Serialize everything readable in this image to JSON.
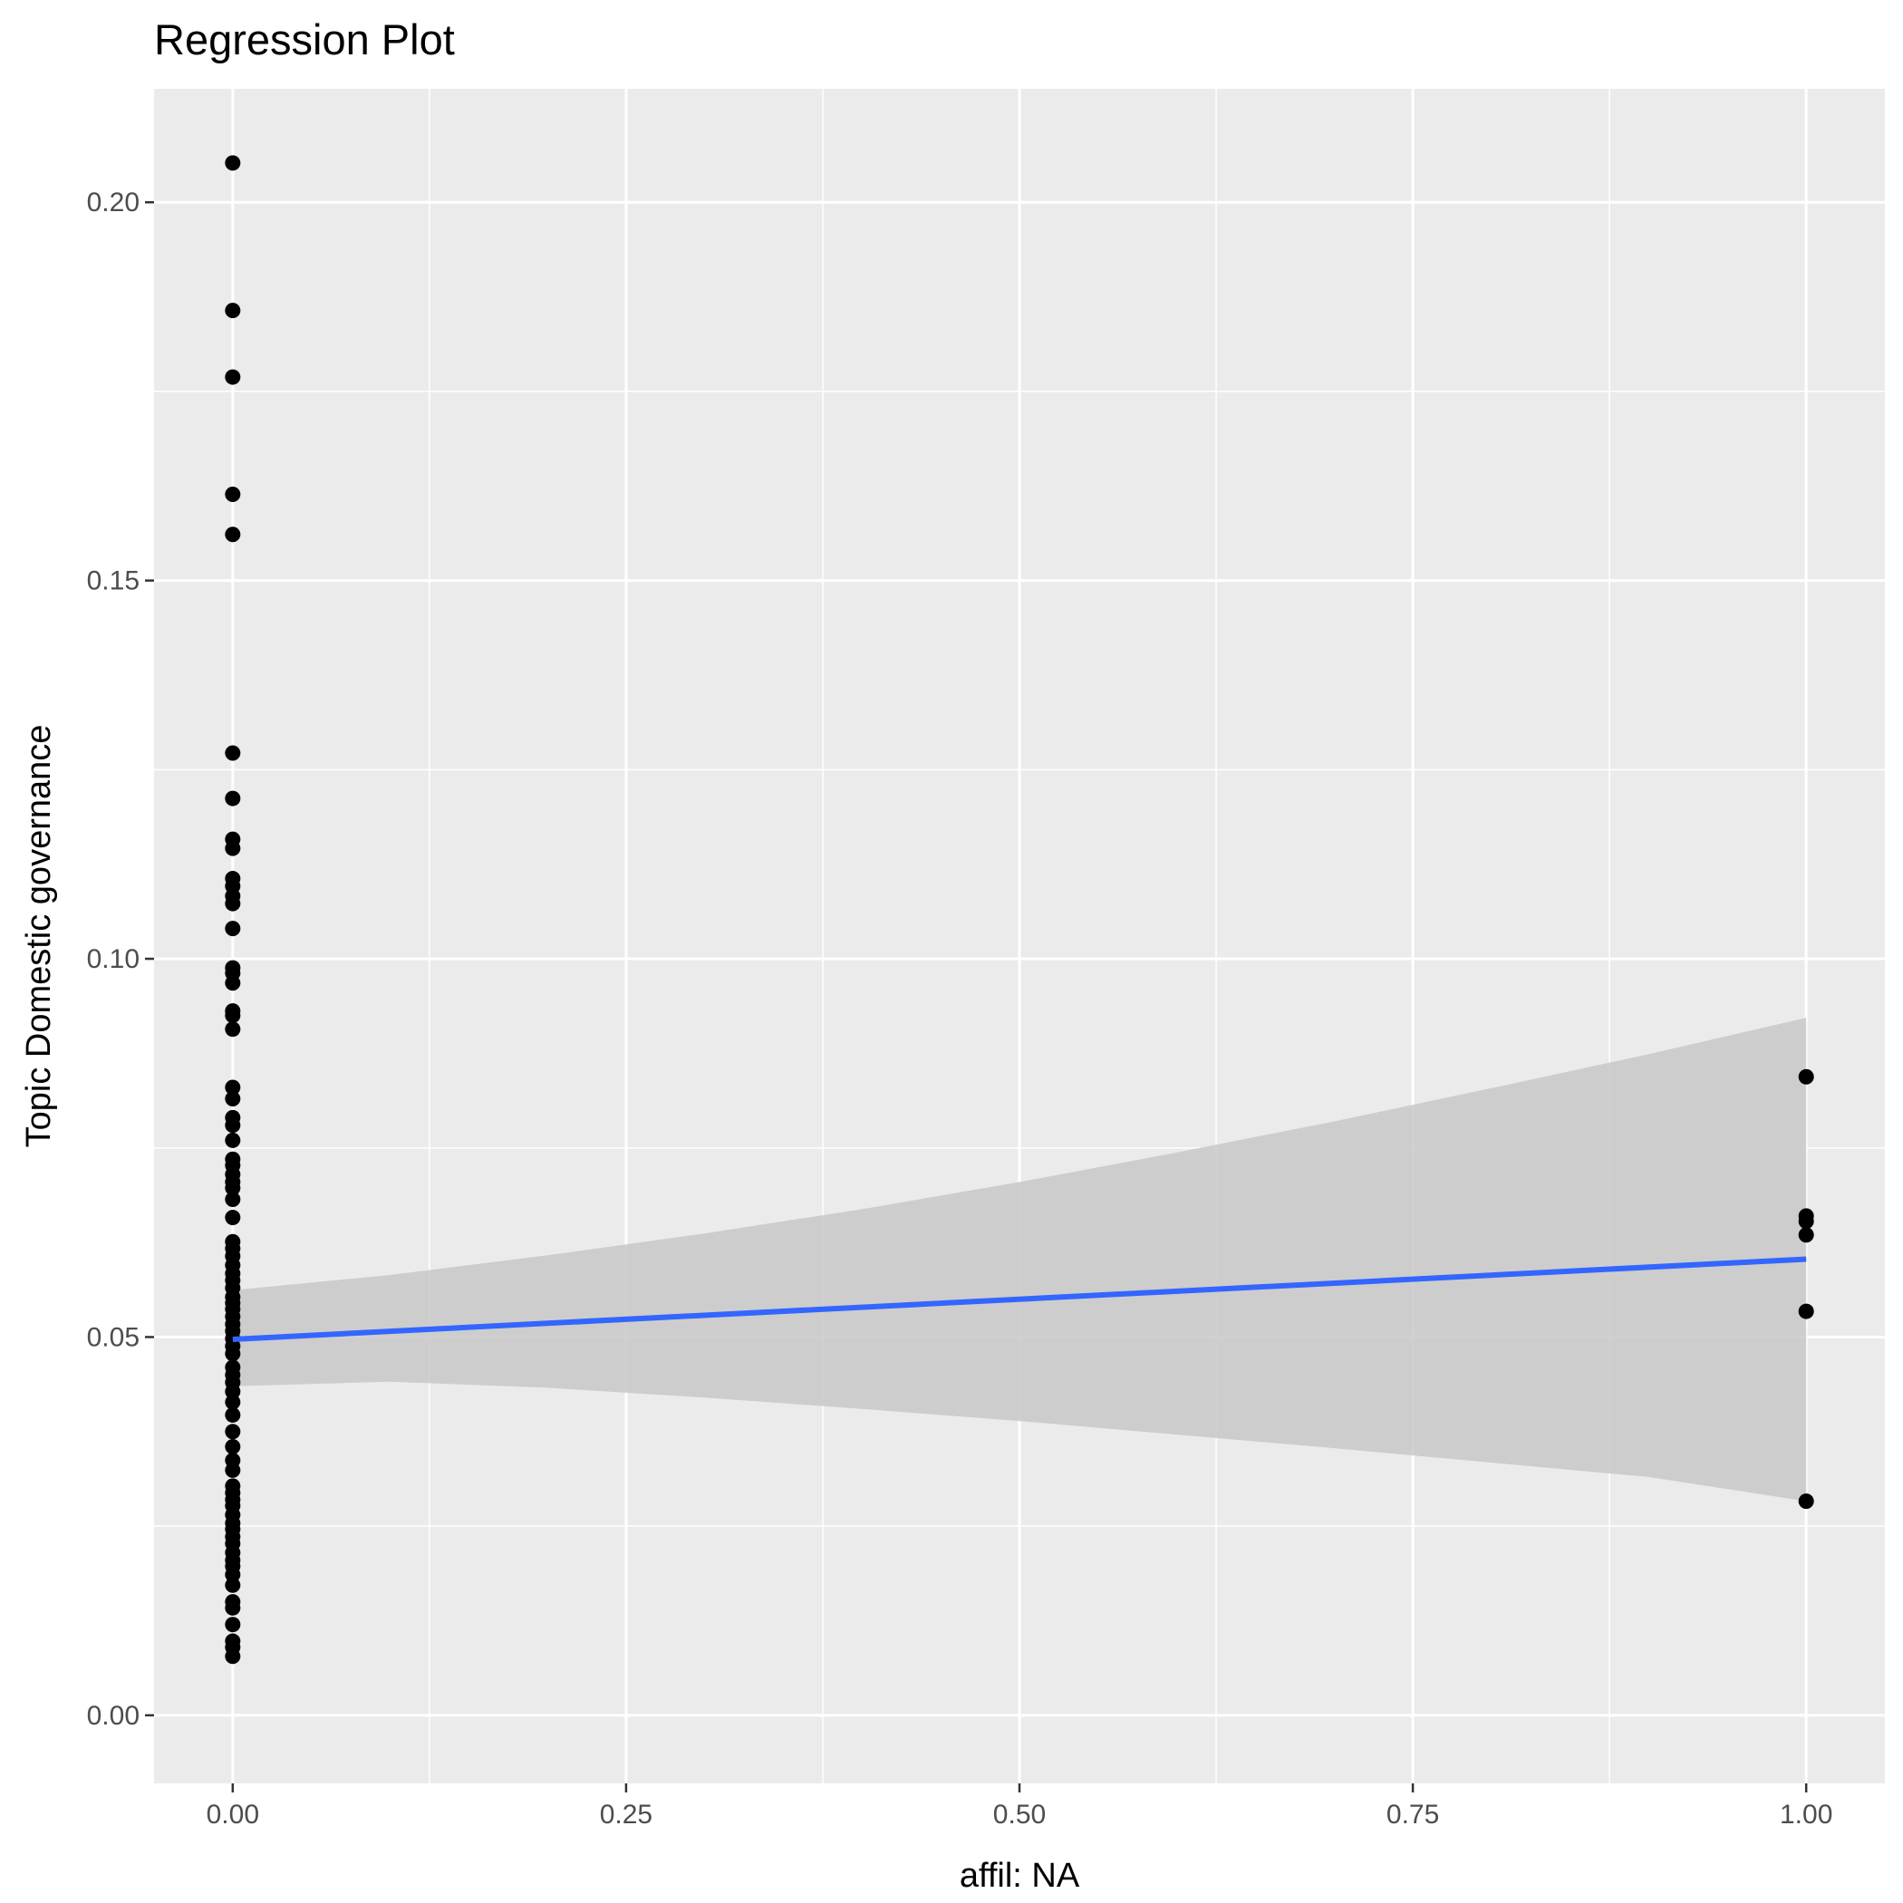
{
  "chart_data": {
    "type": "scatter",
    "title": "Regression Plot",
    "xlabel": "affil: NA",
    "ylabel": "Topic Domestic governance",
    "xlim": [
      -0.05,
      1.05
    ],
    "ylim": [
      -0.009,
      0.215
    ],
    "x_ticks": [
      "0.00",
      "0.25",
      "0.50",
      "0.75",
      "1.00"
    ],
    "y_ticks": [
      "0.00",
      "0.05",
      "0.10",
      "0.15",
      "0.20"
    ],
    "grid": true,
    "background": "#ebebeb",
    "gridline_color": "#ffffff",
    "point_color": "#000000",
    "line_color": "#3366ff",
    "ribbon_color": "#c8c8c8",
    "series": [
      {
        "x": [
          0,
          0,
          0,
          0,
          0,
          0,
          0,
          0,
          0,
          0,
          0,
          0,
          0,
          0,
          0,
          0,
          0,
          0,
          0,
          0,
          0,
          0,
          0,
          0,
          0,
          0,
          0,
          0,
          0,
          0,
          0,
          0,
          0,
          0,
          0,
          0,
          0,
          0,
          0,
          0,
          0,
          0,
          0,
          0,
          0,
          0,
          0,
          0,
          0,
          0,
          0,
          0,
          0,
          0,
          0,
          0,
          0,
          0,
          0,
          0,
          0,
          0,
          0,
          0,
          0,
          0,
          0,
          0,
          0,
          0,
          0,
          0,
          0,
          0,
          0,
          0,
          0,
          0,
          1,
          1,
          1,
          1,
          1,
          1
        ],
        "y": [
          0.2052,
          0.1857,
          0.1769,
          0.1614,
          0.1561,
          0.1272,
          0.1212,
          0.1158,
          0.1146,
          0.1106,
          0.1096,
          0.1083,
          0.1073,
          0.104,
          0.0988,
          0.0981,
          0.0968,
          0.0931,
          0.0925,
          0.0907,
          0.083,
          0.0815,
          0.079,
          0.078,
          0.076,
          0.0735,
          0.0727,
          0.0715,
          0.0705,
          0.0697,
          0.0682,
          0.0658,
          0.0626,
          0.0617,
          0.0607,
          0.0595,
          0.0584,
          0.0575,
          0.0565,
          0.0553,
          0.0545,
          0.0537,
          0.0527,
          0.0517,
          0.0508,
          0.0498,
          0.0488,
          0.0478,
          0.046,
          0.045,
          0.044,
          0.0428,
          0.0414,
          0.0397,
          0.0375,
          0.0355,
          0.0337,
          0.0324,
          0.0303,
          0.0294,
          0.0285,
          0.0277,
          0.0265,
          0.0254,
          0.0246,
          0.0236,
          0.0227,
          0.0215,
          0.0205,
          0.0197,
          0.0186,
          0.0172,
          0.015,
          0.0142,
          0.012,
          0.0098,
          0.009,
          0.0078,
          0.0844,
          0.066,
          0.0653,
          0.0635,
          0.0534,
          0.0283
        ]
      }
    ],
    "regression": {
      "x": [
        0,
        1
      ],
      "y": [
        0.0497,
        0.0603
      ]
    },
    "ci_band": {
      "x": [
        0,
        0.1,
        0.2,
        0.3,
        0.4,
        0.5,
        0.6,
        0.7,
        0.8,
        0.9,
        1.0
      ],
      "lower": [
        0.0435,
        0.0441,
        0.0433,
        0.042,
        0.0405,
        0.0389,
        0.0371,
        0.0353,
        0.0334,
        0.0315,
        0.0283
      ],
      "upper": [
        0.0562,
        0.0582,
        0.0608,
        0.0637,
        0.0669,
        0.0705,
        0.0744,
        0.0785,
        0.0829,
        0.0874,
        0.0922
      ]
    }
  }
}
